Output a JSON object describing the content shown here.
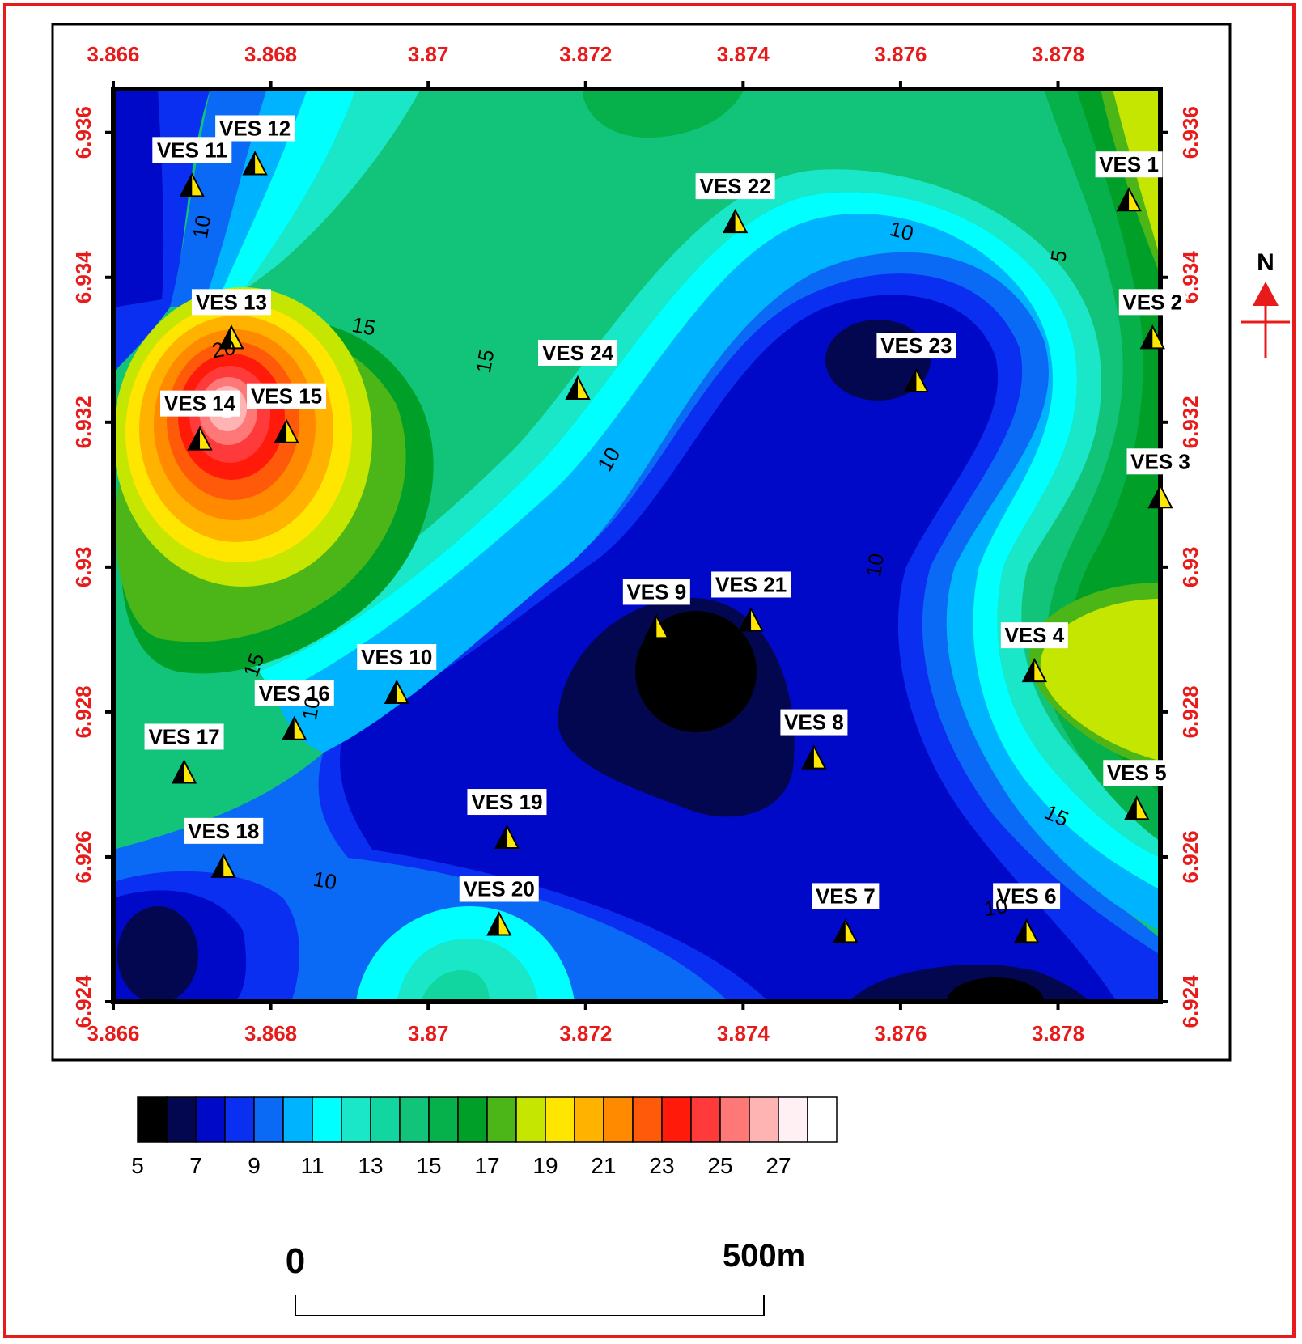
{
  "map": {
    "x_axis": {
      "ticks": [
        "3.866",
        "3.868",
        "3.87",
        "3.872",
        "3.874",
        "3.876",
        "3.878"
      ],
      "range": [
        3.866,
        3.8793
      ]
    },
    "y_axis": {
      "ticks": [
        "6.924",
        "6.926",
        "6.928",
        "6.93",
        "6.932",
        "6.934",
        "6.936"
      ],
      "range": [
        6.924,
        6.9366
      ]
    },
    "tick_color": "#e81b1b",
    "stations": [
      {
        "label": "VES 1",
        "x": 3.8789,
        "y": 6.935
      },
      {
        "label": "VES 2",
        "x": 3.8792,
        "y": 6.9331
      },
      {
        "label": "VES 3",
        "x": 3.8793,
        "y": 6.9309
      },
      {
        "label": "VES 4",
        "x": 3.8777,
        "y": 6.9285
      },
      {
        "label": "VES 5",
        "x": 3.879,
        "y": 6.9266
      },
      {
        "label": "VES 6",
        "x": 3.8776,
        "y": 6.9249
      },
      {
        "label": "VES 7",
        "x": 3.8753,
        "y": 6.9249
      },
      {
        "label": "VES 8",
        "x": 3.8749,
        "y": 6.9273
      },
      {
        "label": "VES 9",
        "x": 3.8729,
        "y": 6.9291
      },
      {
        "label": "VES 10",
        "x": 3.8696,
        "y": 6.9282
      },
      {
        "label": "VES 11",
        "x": 3.867,
        "y": 6.9352
      },
      {
        "label": "VES 12",
        "x": 3.8678,
        "y": 6.9355
      },
      {
        "label": "VES 13",
        "x": 3.8675,
        "y": 6.9331
      },
      {
        "label": "VES 14",
        "x": 3.8671,
        "y": 6.9317
      },
      {
        "label": "VES 15",
        "x": 3.8682,
        "y": 6.9318
      },
      {
        "label": "VES 16",
        "x": 3.8683,
        "y": 6.9277
      },
      {
        "label": "VES 17",
        "x": 3.8669,
        "y": 6.9271
      },
      {
        "label": "VES 18",
        "x": 3.8674,
        "y": 6.9258
      },
      {
        "label": "VES 19",
        "x": 3.871,
        "y": 6.9262
      },
      {
        "label": "VES 20",
        "x": 3.8709,
        "y": 6.925
      },
      {
        "label": "VES 21",
        "x": 3.8741,
        "y": 6.9292
      },
      {
        "label": "VES 22",
        "x": 3.8739,
        "y": 6.9347
      },
      {
        "label": "VES 23",
        "x": 3.8762,
        "y": 6.9325
      },
      {
        "label": "VES 24",
        "x": 3.8719,
        "y": 6.9324
      }
    ],
    "contour_labels": [
      "10",
      "10",
      "10",
      "10",
      "10",
      "10",
      "10",
      "15",
      "15",
      "15",
      "15",
      "20",
      "5"
    ]
  },
  "legend": {
    "colors": [
      "#000000",
      "#020750",
      "#0009c7",
      "#0a2ff0",
      "#0a6af5",
      "#00b3ff",
      "#00ffff",
      "#1ae6c8",
      "#12d6a0",
      "#12c47a",
      "#06b04a",
      "#00a028",
      "#4cb518",
      "#c4e600",
      "#ffe600",
      "#ffb200",
      "#ff8a00",
      "#ff5a0a",
      "#ff1a0a",
      "#ff3a3a",
      "#ff7878",
      "#ffb4b4",
      "#fff0f4",
      "#ffffff"
    ],
    "labels": [
      "5",
      "7",
      "9",
      "11",
      "13",
      "15",
      "17",
      "19",
      "21",
      "23",
      "25",
      "27"
    ]
  },
  "north_arrow": {
    "label": "N"
  },
  "scale_bar": {
    "start_label": "0",
    "end_label": "500m"
  }
}
